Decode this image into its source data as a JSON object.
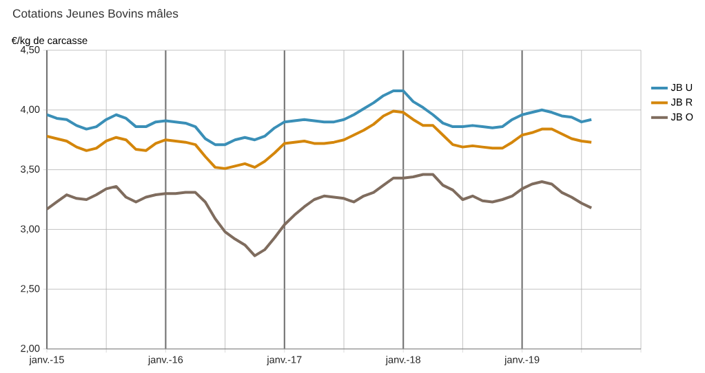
{
  "chart_data": {
    "type": "line",
    "title": "Cotations Jeunes Bovins mâles",
    "ylabel": "€/kg de carcasse",
    "x": [
      "2015-01",
      "2015-02",
      "2015-03",
      "2015-04",
      "2015-05",
      "2015-06",
      "2015-07",
      "2015-08",
      "2015-09",
      "2015-10",
      "2015-11",
      "2015-12",
      "2016-01",
      "2016-02",
      "2016-03",
      "2016-04",
      "2016-05",
      "2016-06",
      "2016-07",
      "2016-08",
      "2016-09",
      "2016-10",
      "2016-11",
      "2016-12",
      "2017-01",
      "2017-02",
      "2017-03",
      "2017-04",
      "2017-05",
      "2017-06",
      "2017-07",
      "2017-08",
      "2017-09",
      "2017-10",
      "2017-11",
      "2017-12",
      "2018-01",
      "2018-02",
      "2018-03",
      "2018-04",
      "2018-05",
      "2018-06",
      "2018-07",
      "2018-08",
      "2018-09",
      "2018-10",
      "2018-11",
      "2018-12",
      "2019-01",
      "2019-02",
      "2019-03",
      "2019-04",
      "2019-05",
      "2019-06",
      "2019-07",
      "2019-08"
    ],
    "series": [
      {
        "name": "JB U",
        "color": "#3a8fb7",
        "values": [
          3.96,
          3.93,
          3.92,
          3.87,
          3.84,
          3.86,
          3.92,
          3.96,
          3.93,
          3.86,
          3.86,
          3.9,
          3.91,
          3.9,
          3.89,
          3.86,
          3.76,
          3.71,
          3.71,
          3.75,
          3.77,
          3.75,
          3.78,
          3.85,
          3.9,
          3.91,
          3.92,
          3.91,
          3.9,
          3.9,
          3.92,
          3.96,
          4.01,
          4.06,
          4.12,
          4.16,
          4.16,
          4.07,
          4.02,
          3.96,
          3.89,
          3.86,
          3.86,
          3.87,
          3.86,
          3.85,
          3.86,
          3.92,
          3.96,
          3.98,
          4.0,
          3.98,
          3.95,
          3.94,
          3.9,
          3.92
        ]
      },
      {
        "name": "JB R",
        "color": "#d4860b",
        "values": [
          3.78,
          3.76,
          3.74,
          3.69,
          3.66,
          3.68,
          3.74,
          3.77,
          3.75,
          3.67,
          3.66,
          3.72,
          3.75,
          3.74,
          3.73,
          3.71,
          3.61,
          3.52,
          3.51,
          3.53,
          3.55,
          3.52,
          3.57,
          3.64,
          3.72,
          3.73,
          3.74,
          3.72,
          3.72,
          3.73,
          3.75,
          3.79,
          3.83,
          3.88,
          3.95,
          3.99,
          3.98,
          3.92,
          3.87,
          3.87,
          3.79,
          3.71,
          3.69,
          3.7,
          3.69,
          3.68,
          3.68,
          3.73,
          3.79,
          3.81,
          3.84,
          3.84,
          3.8,
          3.76,
          3.74,
          3.73
        ]
      },
      {
        "name": "JB O",
        "color": "#7f6c5e",
        "values": [
          3.17,
          3.23,
          3.29,
          3.26,
          3.25,
          3.29,
          3.34,
          3.36,
          3.27,
          3.23,
          3.27,
          3.29,
          3.3,
          3.3,
          3.31,
          3.31,
          3.23,
          3.09,
          2.98,
          2.92,
          2.87,
          2.78,
          2.83,
          2.93,
          3.04,
          3.12,
          3.19,
          3.25,
          3.28,
          3.27,
          3.26,
          3.23,
          3.28,
          3.31,
          3.37,
          3.43,
          3.43,
          3.44,
          3.46,
          3.46,
          3.37,
          3.33,
          3.25,
          3.28,
          3.24,
          3.23,
          3.25,
          3.28,
          3.34,
          3.38,
          3.4,
          3.38,
          3.31,
          3.27,
          3.22,
          3.18
        ]
      }
    ],
    "xlim": [
      "2015-01",
      "2020-01"
    ],
    "xticks": [
      {
        "value": "2015-01",
        "label": "janv.-15"
      },
      {
        "value": "2015-07",
        "label": null
      },
      {
        "value": "2016-01",
        "label": "janv.-16"
      },
      {
        "value": "2016-07",
        "label": null
      },
      {
        "value": "2017-01",
        "label": "janv.-17"
      },
      {
        "value": "2017-07",
        "label": null
      },
      {
        "value": "2018-01",
        "label": "janv.-18"
      },
      {
        "value": "2018-07",
        "label": null
      },
      {
        "value": "2019-01",
        "label": "janv.-19"
      },
      {
        "value": "2019-07",
        "label": null
      },
      {
        "value": "2020-01",
        "label": null
      }
    ],
    "ylim": [
      2.0,
      4.5
    ],
    "yticks": [
      {
        "value": 2.0,
        "label": "2,00"
      },
      {
        "value": 2.5,
        "label": "2,50"
      },
      {
        "value": 3.0,
        "label": "3,00"
      },
      {
        "value": 3.5,
        "label": "3,50"
      },
      {
        "value": 4.0,
        "label": "4,00"
      },
      {
        "value": 4.5,
        "label": "4,50"
      }
    ],
    "grid": true,
    "legend": "right",
    "marker": "none",
    "line_style": "solid"
  }
}
